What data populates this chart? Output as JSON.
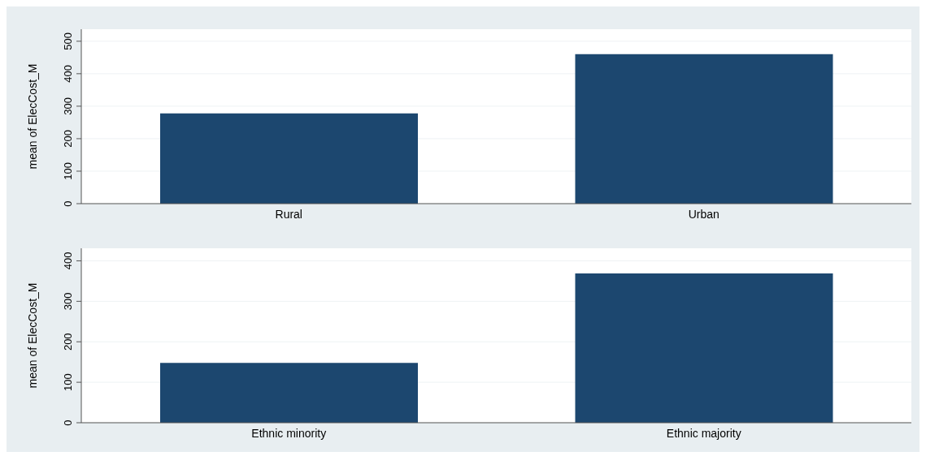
{
  "chart_data": [
    {
      "type": "bar",
      "categories": [
        "Rural",
        "Urban"
      ],
      "values": [
        278,
        460
      ],
      "color": "#1c476f",
      "ylabel": "mean of ElecCost_M",
      "ylim": [
        0,
        537
      ],
      "yticks": [
        0,
        100,
        200,
        300,
        400,
        500
      ],
      "grid": "y"
    },
    {
      "type": "bar",
      "categories": [
        "Ethnic minority",
        "Ethnic majority"
      ],
      "values": [
        148,
        369
      ],
      "color": "#1c476f",
      "ylabel": "mean of ElecCost_M",
      "ylim": [
        0,
        431
      ],
      "yticks": [
        0,
        100,
        200,
        300,
        400
      ],
      "grid": "y"
    }
  ]
}
